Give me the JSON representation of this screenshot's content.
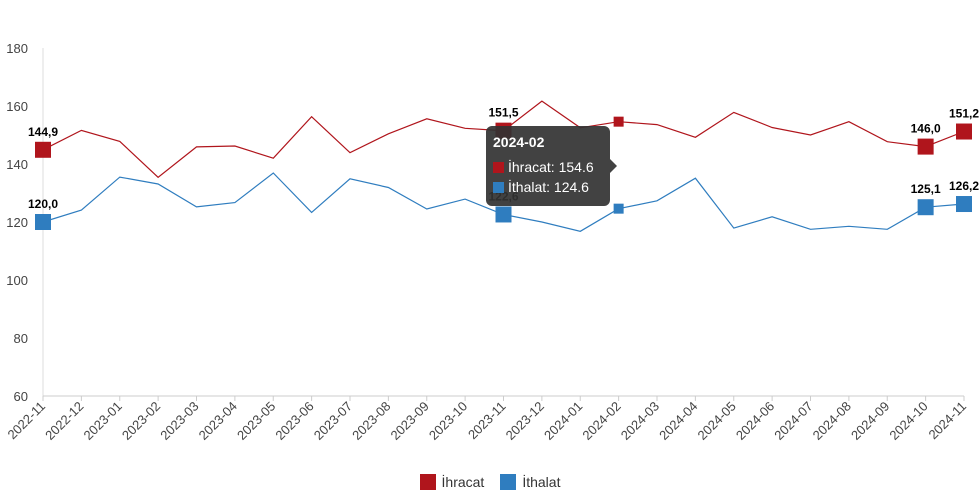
{
  "chart_data": {
    "type": "line",
    "x": [
      "2022-11",
      "2022-12",
      "2023-01",
      "2023-02",
      "2023-03",
      "2023-04",
      "2023-05",
      "2023-06",
      "2023-07",
      "2023-08",
      "2023-09",
      "2023-10",
      "2023-11",
      "2023-12",
      "2024-01",
      "2024-02",
      "2024-03",
      "2024-04",
      "2024-05",
      "2024-06",
      "2024-07",
      "2024-08",
      "2024-09",
      "2024-10",
      "2024-11"
    ],
    "ylim": [
      60,
      180
    ],
    "yticks": [
      60,
      80,
      100,
      120,
      140,
      160,
      180
    ],
    "grid": false,
    "legend_position": "bottom",
    "series": [
      {
        "name": "İhracat",
        "color": "#b0151c",
        "values": [
          144.9,
          151.6,
          147.8,
          135.4,
          145.9,
          146.2,
          142.0,
          156.3,
          143.9,
          150.4,
          155.6,
          152.3,
          151.5,
          161.7,
          152.5,
          154.6,
          153.6,
          149.2,
          157.8,
          152.6,
          150.0,
          154.6,
          147.7,
          146.0,
          151.2
        ]
      },
      {
        "name": "İthalat",
        "color": "#2f7dbf",
        "values": [
          120.0,
          124.1,
          135.5,
          133.1,
          125.2,
          126.7,
          136.9,
          123.3,
          134.9,
          131.9,
          124.5,
          127.9,
          122.6,
          120.0,
          116.8,
          124.6,
          127.3,
          135.1,
          117.9,
          121.8,
          117.5,
          118.5,
          117.5,
          125.1,
          126.2
        ]
      }
    ],
    "data_labels": [
      {
        "series": 0,
        "index": 0,
        "text": "144,9"
      },
      {
        "series": 0,
        "index": 12,
        "text": "151,5"
      },
      {
        "series": 0,
        "index": 23,
        "text": "146,0"
      },
      {
        "series": 0,
        "index": 24,
        "text": "151,2"
      },
      {
        "series": 1,
        "index": 0,
        "text": "120,0"
      },
      {
        "series": 1,
        "index": 12,
        "text": "122,6"
      },
      {
        "series": 1,
        "index": 23,
        "text": "125,1"
      },
      {
        "series": 1,
        "index": 24,
        "text": "126,2"
      }
    ],
    "big_markers": [
      0,
      12,
      23,
      24
    ],
    "tooltip": {
      "title": "2024-02",
      "index": 15,
      "rows": [
        {
          "label": "İhracat: 154.6",
          "color": "#b0151c"
        },
        {
          "label": "İthalat: 124.6",
          "color": "#2f7dbf"
        }
      ]
    }
  }
}
